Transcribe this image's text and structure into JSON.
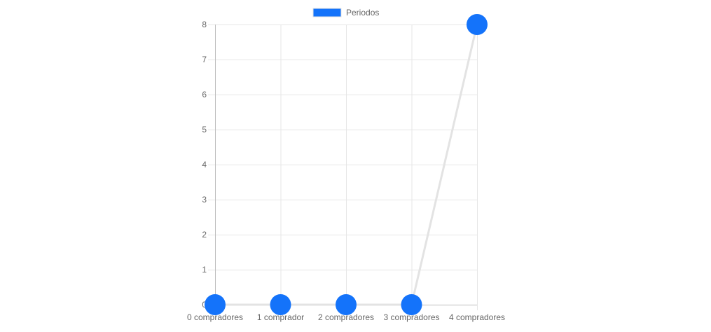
{
  "chart_data": {
    "type": "line",
    "categories": [
      "0 compradores",
      "1 comprador",
      "2 compradores",
      "3 compradores",
      "4 compradores"
    ],
    "series": [
      {
        "name": "Periodos",
        "values": [
          0,
          0,
          0,
          0,
          8
        ],
        "point_color": "#1473fa",
        "line_color": "#e3e3e3"
      }
    ],
    "ylim": [
      0,
      8
    ],
    "yticks": [
      0,
      1,
      2,
      3,
      4,
      5,
      6,
      7,
      8
    ],
    "grid": true,
    "legend_position": "top",
    "title": "",
    "xlabel": "",
    "ylabel": ""
  }
}
